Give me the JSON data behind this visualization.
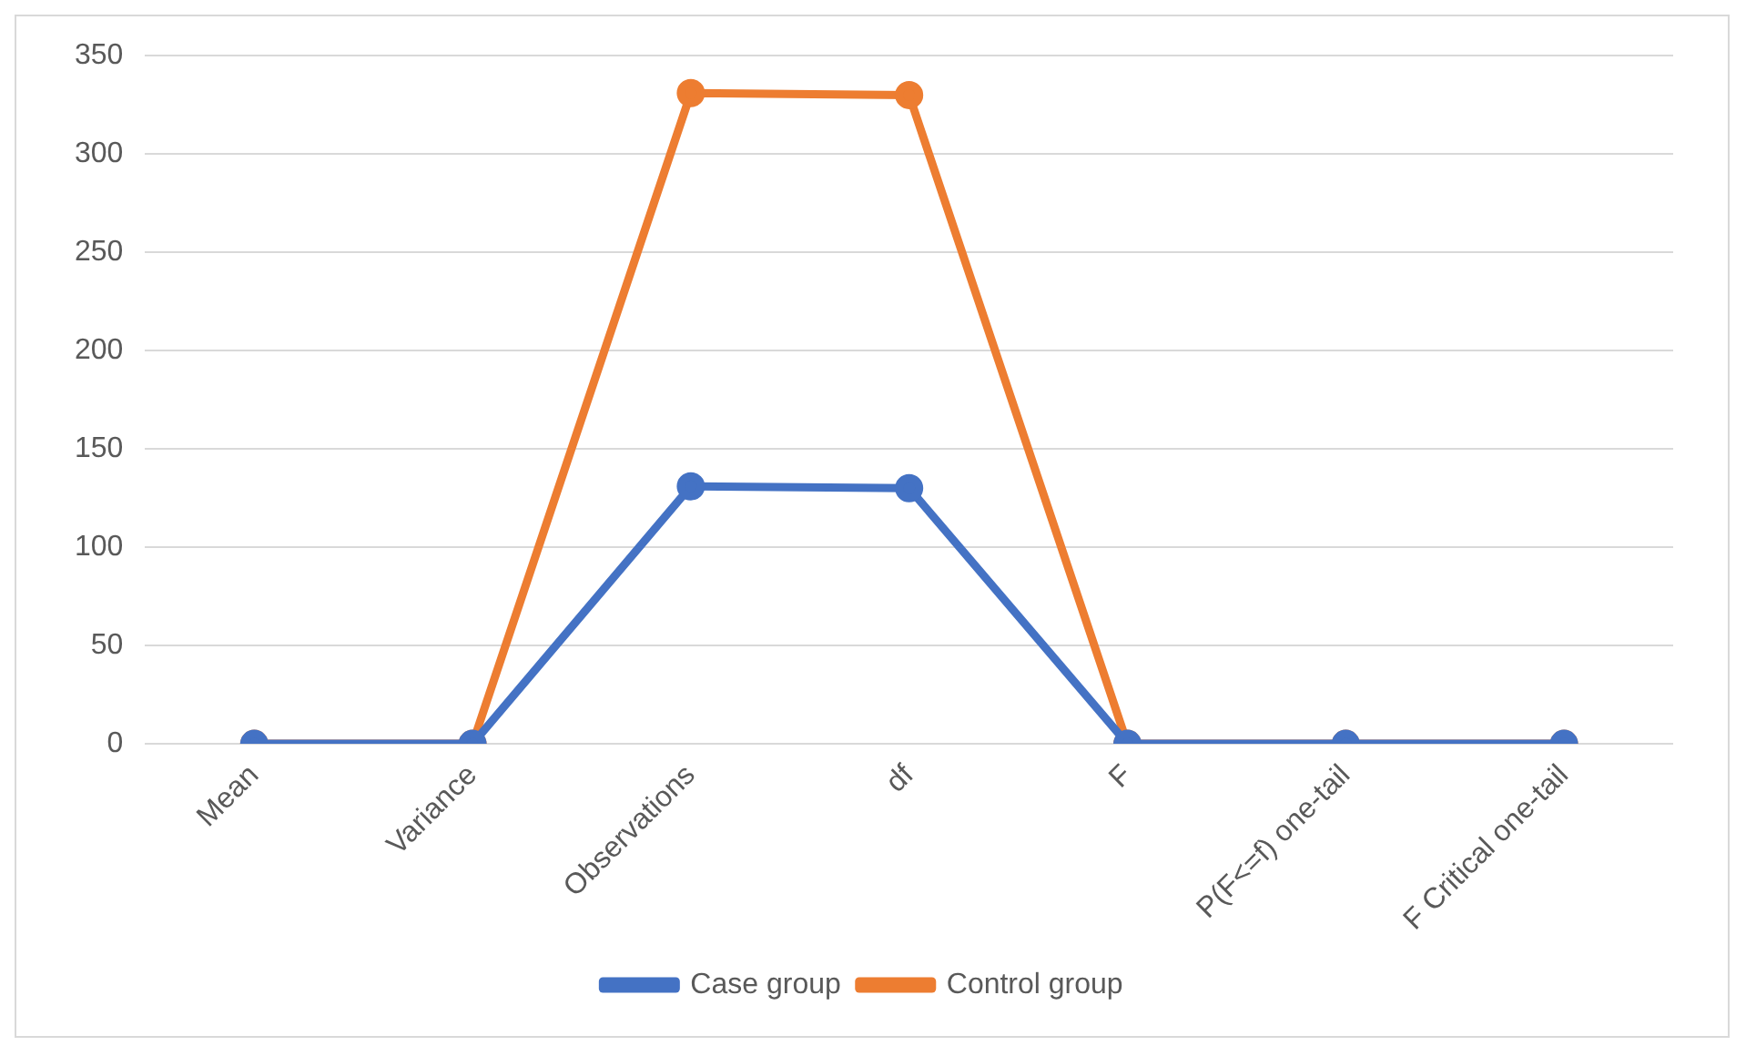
{
  "chart_data": {
    "type": "line",
    "categories": [
      "Mean",
      "Variance",
      "Observations",
      "df",
      "F",
      "P(F<=f) one-tail",
      "F Critical one-tail"
    ],
    "series": [
      {
        "name": "Case group",
        "color": "#4472c4",
        "values": [
          0,
          0,
          131,
          130,
          0,
          0,
          0
        ]
      },
      {
        "name": "Control group",
        "color": "#ed7d31",
        "values": [
          0,
          0,
          331,
          330,
          0,
          0,
          0
        ]
      }
    ],
    "ylim": [
      0,
      350
    ],
    "yticks": [
      0,
      50,
      100,
      150,
      200,
      250,
      300,
      350
    ],
    "grid": "y",
    "legend": "bottom",
    "marker": "circle",
    "line_style": "solid"
  }
}
